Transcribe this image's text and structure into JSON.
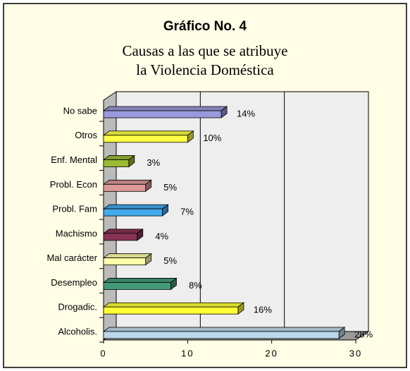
{
  "chart_data": {
    "type": "bar3d_h",
    "title": "Gráfico No. 4",
    "subtitle": [
      "Causas a las que se atribuye",
      "la Violencia Doméstica"
    ],
    "categories": [
      "No sabe",
      "Otros",
      "Enf. Mental",
      "Probl. Econ",
      "Probl. Fam",
      "Machismo",
      "Mal carácter",
      "Desempleo",
      "Drogadic.",
      "Alcoholis."
    ],
    "values": [
      14,
      10,
      3,
      5,
      7,
      4,
      5,
      8,
      16,
      28
    ],
    "value_labels": [
      "14%",
      "10%",
      "3%",
      "5%",
      "7%",
      "4%",
      "5%",
      "8%",
      "16%",
      "28%"
    ],
    "colors": [
      "#9999dd",
      "#ffff44",
      "#99bb33",
      "#dd9999",
      "#44aaee",
      "#883355",
      "#ffffaa",
      "#449977",
      "#ffff33",
      "#bbd8e8"
    ],
    "xlim": [
      0,
      30
    ],
    "xticks": [
      0,
      10,
      20,
      30
    ],
    "grid": true
  }
}
